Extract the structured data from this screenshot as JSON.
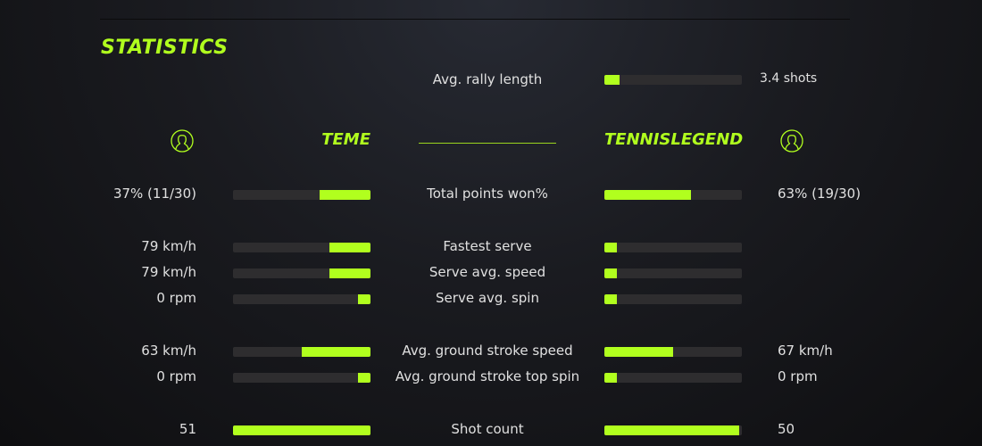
{
  "title": "STATISTICS",
  "accent": "#b1ff1e",
  "rally": {
    "label": "Avg. rally length",
    "value": "3.4 shots",
    "fill": 0.11
  },
  "players": {
    "left": {
      "name": "TEME",
      "icon": "user-circle-icon"
    },
    "right": {
      "name": "TENNISLEGEND",
      "icon": "user-circle-icon"
    }
  },
  "rows": [
    {
      "label": "Total points won%",
      "left": "37% (11/30)",
      "right": "63% (19/30)",
      "left_fill": 0.37,
      "right_fill": 0.63
    },
    {
      "label": "Fastest serve",
      "left": "79 km/h",
      "right": "",
      "left_fill": 0.3,
      "right_fill": 0.09
    },
    {
      "label": "Serve avg. speed",
      "left": "79 km/h",
      "right": "",
      "left_fill": 0.3,
      "right_fill": 0.09
    },
    {
      "label": "Serve avg. spin",
      "left": "0 rpm",
      "right": "",
      "left_fill": 0.09,
      "right_fill": 0.09
    },
    {
      "label": "Avg. ground stroke speed",
      "left": "63 km/h",
      "right": "67 km/h",
      "left_fill": 0.5,
      "right_fill": 0.5
    },
    {
      "label": "Avg. ground stroke top spin",
      "left": "0 rpm",
      "right": "0 rpm",
      "left_fill": 0.09,
      "right_fill": 0.09
    },
    {
      "label": "Shot count",
      "left": "51",
      "right": "50",
      "left_fill": 1.0,
      "right_fill": 0.98
    }
  ]
}
